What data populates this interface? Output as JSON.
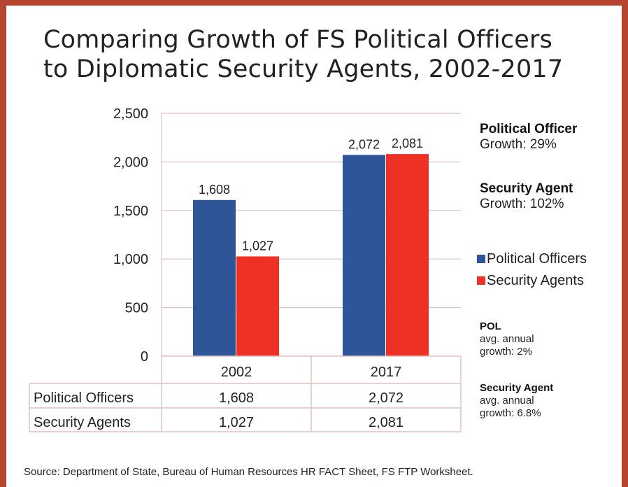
{
  "title_line1": "Comparing Growth of FS Political Officers",
  "title_line2": "to Diplomatic Security Agents, 2002-2017",
  "colors": {
    "political": "#2e5597",
    "security": "#ee3124",
    "border": "#b5452e",
    "grid": "#e2bfbf"
  },
  "chart_data": {
    "type": "bar",
    "title": "Comparing Growth of FS Political Officers to Diplomatic Security Agents, 2002-2017",
    "categories": [
      "2002",
      "2017"
    ],
    "series": [
      {
        "name": "Political Officers",
        "values": [
          1608,
          2072
        ],
        "labels": [
          "1,608",
          "2,072"
        ]
      },
      {
        "name": "Security Agents",
        "values": [
          1027,
          2081
        ],
        "labels": [
          "1,027",
          "2,081"
        ]
      }
    ],
    "ylim": [
      0,
      2500
    ],
    "yticks": [
      "0",
      "500",
      "1,000",
      "1,500",
      "2,000",
      "2,500"
    ],
    "grid": true,
    "legend": "right"
  },
  "legend": {
    "political": "Political Officers",
    "security": "Security Agents"
  },
  "side": {
    "pol_title": "Political Officer",
    "pol_growth": "Growth: 29%",
    "sec_title": "Security Agent",
    "sec_growth": "Growth: 102%",
    "pol_small_title": "POL",
    "pol_small_line1": "avg. annual",
    "pol_small_line2": "growth: 2%",
    "sec_small_title": "Security Agent",
    "sec_small_line1": "avg. annual",
    "sec_small_line2": "growth:  6.8%"
  },
  "table": {
    "rows": [
      {
        "label": "Political Officers",
        "values": [
          "1,608",
          "2,072"
        ]
      },
      {
        "label": "Security Agents",
        "values": [
          "1,027",
          "2,081"
        ]
      }
    ]
  },
  "source": "Source: Department of State, Bureau of Human Resources HR FACT Sheet, FS FTP Worksheet."
}
